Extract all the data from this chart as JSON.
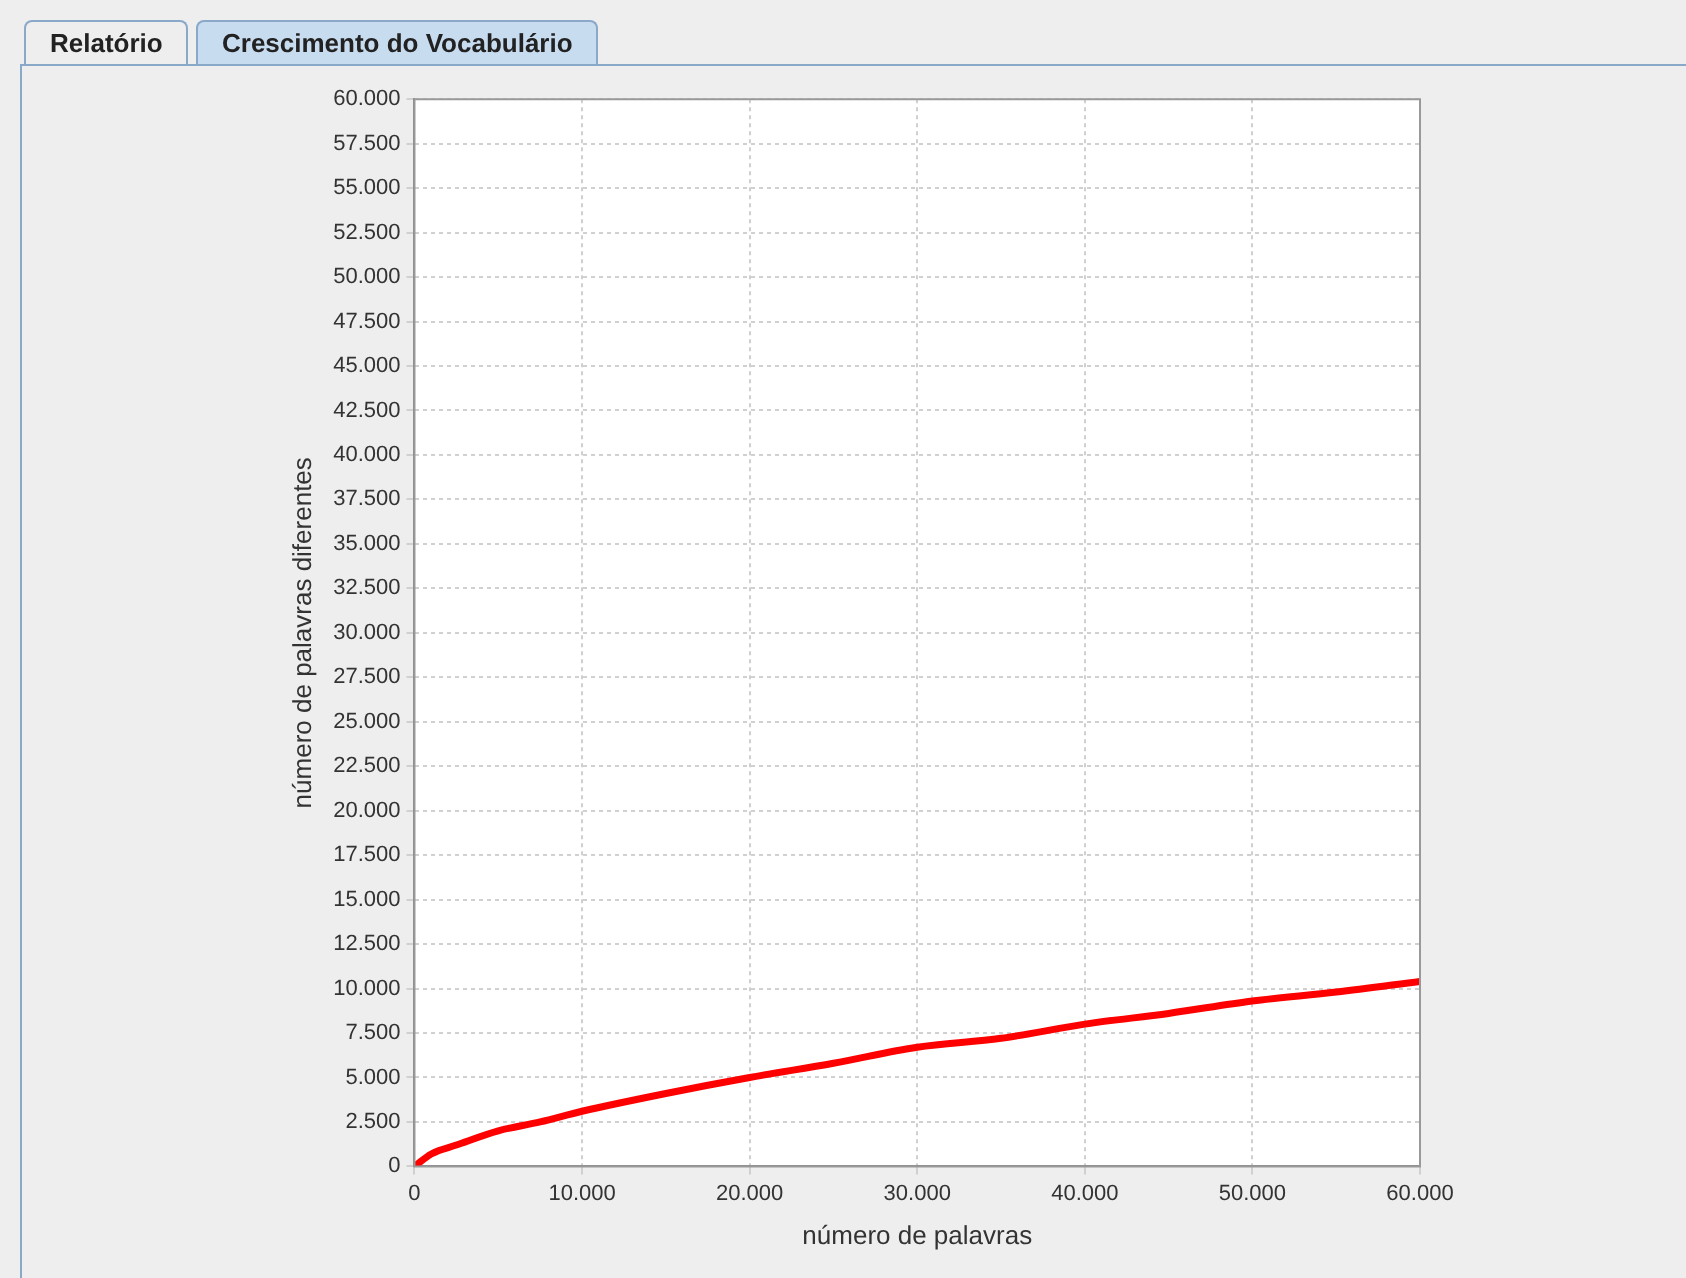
{
  "chart_data": {
    "type": "line",
    "title": "Crescimento do Vocabulário",
    "annotations": [
      "Relatório"
    ],
    "xlabel": "número de palavras",
    "ylabel": "número de palavras diferentes",
    "x": [
      0,
      1000,
      2500,
      5000,
      7500,
      10000,
      15000,
      20000,
      25000,
      30000,
      35000,
      40000,
      45000,
      50000,
      55000,
      60000
    ],
    "series": [
      {
        "color": "#ff0000",
        "values": [
          0,
          700,
          1200,
          2000,
          2500,
          3100,
          4100,
          5000,
          5800,
          6700,
          7200,
          8000,
          8600,
          9300,
          9800,
          10400
        ]
      }
    ],
    "xlim": [
      0,
      60000
    ],
    "ylim": [
      0,
      60000
    ],
    "xticks": [
      {
        "value": 0,
        "label": "0"
      },
      {
        "value": 10000,
        "label": "10.000"
      },
      {
        "value": 20000,
        "label": "20.000"
      },
      {
        "value": 30000,
        "label": "30.000"
      },
      {
        "value": 40000,
        "label": "40.000"
      },
      {
        "value": 50000,
        "label": "50.000"
      },
      {
        "value": 60000,
        "label": "60.000"
      }
    ],
    "yticks": [
      {
        "value": 0,
        "label": "0"
      },
      {
        "value": 2500,
        "label": "2.500"
      },
      {
        "value": 5000,
        "label": "5.000"
      },
      {
        "value": 7500,
        "label": "7.500"
      },
      {
        "value": 10000,
        "label": "10.000"
      },
      {
        "value": 12500,
        "label": "12.500"
      },
      {
        "value": 15000,
        "label": "15.000"
      },
      {
        "value": 17500,
        "label": "17.500"
      },
      {
        "value": 20000,
        "label": "20.000"
      },
      {
        "value": 22500,
        "label": "22.500"
      },
      {
        "value": 25000,
        "label": "25.000"
      },
      {
        "value": 27500,
        "label": "27.500"
      },
      {
        "value": 30000,
        "label": "30.000"
      },
      {
        "value": 32500,
        "label": "32.500"
      },
      {
        "value": 35000,
        "label": "35.000"
      },
      {
        "value": 37500,
        "label": "37.500"
      },
      {
        "value": 40000,
        "label": "40.000"
      },
      {
        "value": 42500,
        "label": "42.500"
      },
      {
        "value": 45000,
        "label": "45.000"
      },
      {
        "value": 47500,
        "label": "47.500"
      },
      {
        "value": 50000,
        "label": "50.000"
      },
      {
        "value": 52500,
        "label": "52.500"
      },
      {
        "value": 55000,
        "label": "55.000"
      },
      {
        "value": 57500,
        "label": "57.500"
      },
      {
        "value": 60000,
        "label": "60.000"
      }
    ],
    "grid": true,
    "legend": false,
    "marker": "none",
    "line_style": "solid"
  }
}
